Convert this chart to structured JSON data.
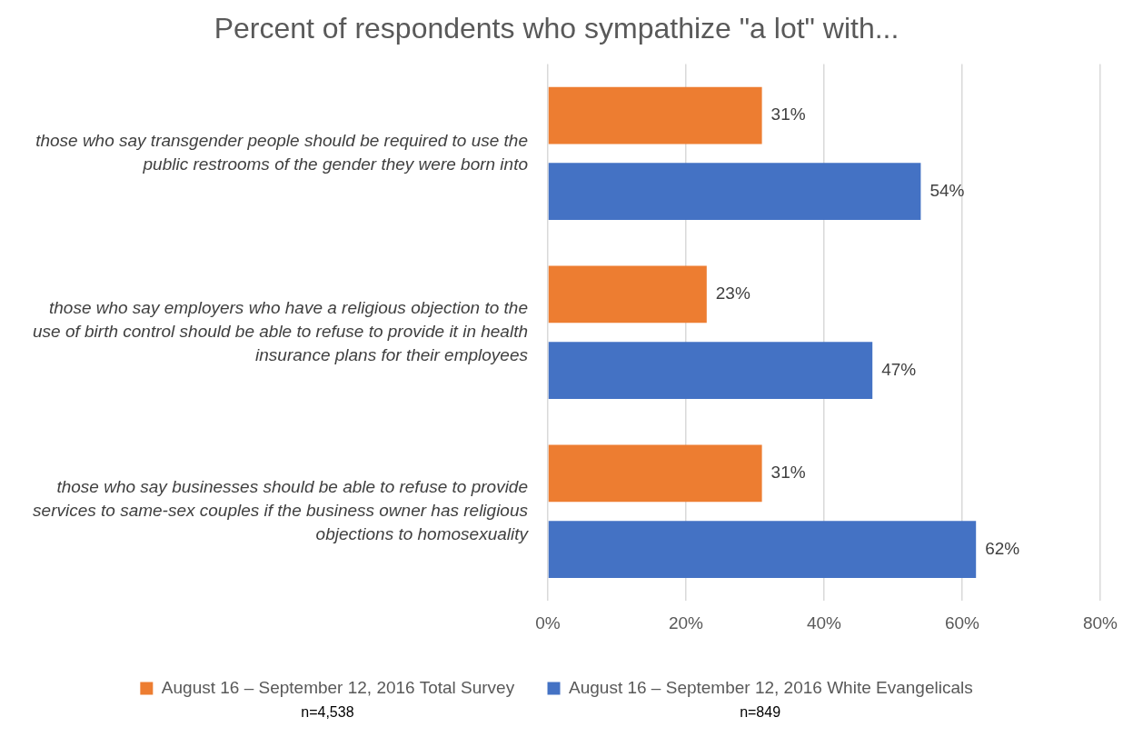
{
  "chart_data": {
    "type": "bar",
    "orientation": "horizontal",
    "title": "Percent of respondents who sympathize \"a lot\" with...",
    "categories": [
      "those who say transgender people should be required to use the public restrooms of the gender they were born into",
      "those who say employers who have a religious objection to the use of birth control should be able to refuse to provide it in health insurance plans for their employees",
      "those who say businesses should be able to refuse to provide services to same-sex couples if the business owner has religious objections to homosexuality"
    ],
    "series": [
      {
        "name": "August 16 – September 12, 2016 Total Survey",
        "color": "#ed7d31",
        "values": [
          31,
          23,
          31
        ],
        "value_labels": [
          "31%",
          "23%",
          "31%"
        ]
      },
      {
        "name": "August 16 – September 12, 2016 White Evangelicals",
        "color": "#4472c4",
        "values": [
          54,
          47,
          62
        ],
        "value_labels": [
          "54%",
          "47%",
          "62%"
        ]
      }
    ],
    "xlim": [
      0,
      80
    ],
    "xticks": [
      {
        "value": 0,
        "label": "0%"
      },
      {
        "value": 20,
        "label": "20%"
      },
      {
        "value": 40,
        "label": "40%"
      },
      {
        "value": 60,
        "label": "60%"
      },
      {
        "value": 80,
        "label": "80%"
      }
    ],
    "grid": "x",
    "legend": "bottom",
    "annotations": [
      "n=4,538",
      "n=849"
    ]
  }
}
